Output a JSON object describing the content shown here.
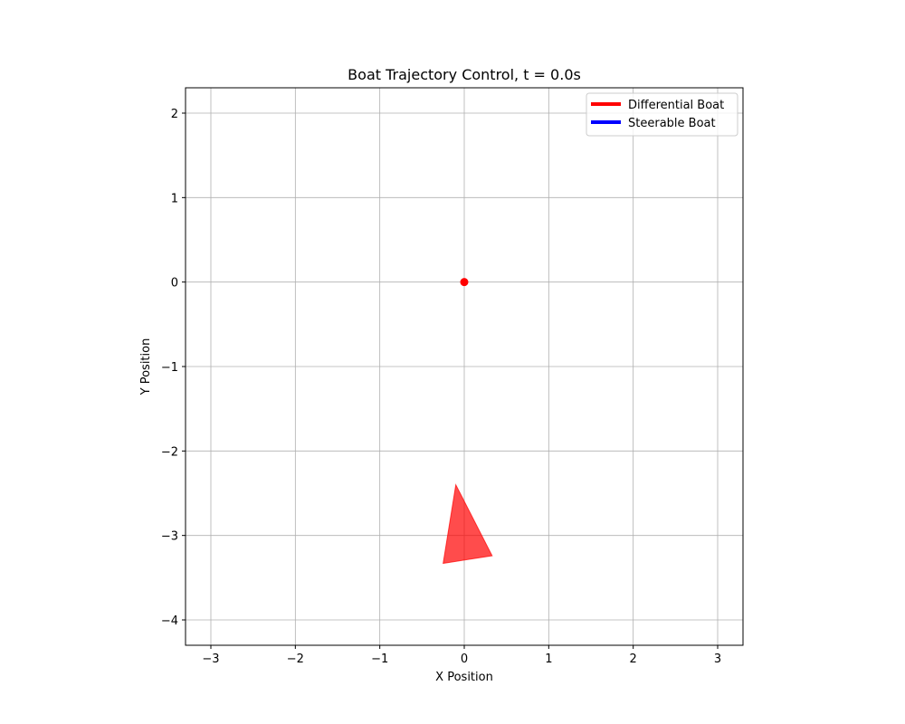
{
  "chart_data": {
    "type": "scatter",
    "title": "Boat Trajectory Control, t = 0.0s",
    "xlabel": "X Position",
    "ylabel": "Y Position",
    "xlim": [
      -3.3,
      3.3
    ],
    "ylim": [
      -4.3,
      2.3
    ],
    "xticks": [
      -3,
      -2,
      -1,
      0,
      1,
      2,
      3
    ],
    "yticks": [
      -4,
      -3,
      -2,
      -1,
      0,
      1,
      2
    ],
    "grid": true,
    "legend_position": "top-right",
    "series": [
      {
        "name": "Differential Boat",
        "color": "#ff0000"
      },
      {
        "name": "Steerable Boat",
        "color": "#0000ff"
      }
    ],
    "target_point": {
      "x": 0,
      "y": 0,
      "color": "#ff0000"
    },
    "boat": {
      "color": "#ff0000",
      "opacity": 0.7,
      "vertices": [
        [
          -0.1,
          -2.4
        ],
        [
          0.33,
          -3.24
        ],
        [
          -0.25,
          -3.33
        ]
      ]
    }
  }
}
